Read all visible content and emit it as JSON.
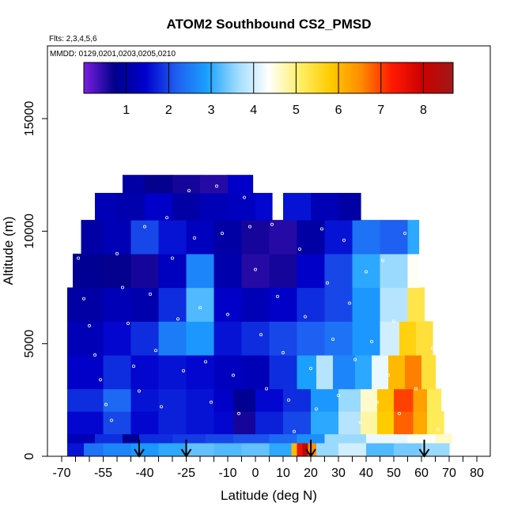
{
  "chart_data": {
    "type": "heatmap",
    "title": "ATOM2 Southbound CS2_PMSD",
    "subtitle_flights": "Flts: 2,3,4,5,6",
    "subtitle_dates": "MMDD: 0129,0201,0203,0205,0210",
    "xlabel": "Latitude (deg N)",
    "ylabel": "Altitude (m)",
    "xlim": [
      -70,
      80
    ],
    "ylim": [
      0,
      17500
    ],
    "x_ticks": [
      -70,
      -55,
      -40,
      -25,
      -10,
      0,
      10,
      20,
      30,
      40,
      50,
      60,
      70,
      80
    ],
    "x_minor_ticks": [
      -65,
      -60,
      -50,
      -45,
      -35,
      -30,
      -20,
      -15,
      -5,
      5,
      15,
      25,
      35,
      45,
      55,
      65,
      75
    ],
    "y_ticks": [
      0,
      5000,
      10000,
      15000
    ],
    "colorbar": {
      "min": 0,
      "max": 8.7,
      "ticks": [
        1,
        2,
        3,
        4,
        5,
        6,
        7,
        8
      ],
      "colors": [
        "#7b1fe0",
        "#00008b",
        "#0000cd",
        "#1e5ef0",
        "#1aa0ff",
        "#9fdcff",
        "#ffffff",
        "#fff06a",
        "#ffcc00",
        "#ff8c00",
        "#ff1a00",
        "#cc0000",
        "#a01818"
      ],
      "placement": "top inside plot"
    },
    "value_legend": "CS2_PMSD",
    "cells": [
      [
        -68,
        -62,
        0,
        600,
        1.6
      ],
      [
        -62,
        -55,
        0,
        600,
        2.4
      ],
      [
        -55,
        -45,
        0,
        600,
        2.6
      ],
      [
        -45,
        -35,
        0,
        600,
        2.8
      ],
      [
        -35,
        -25,
        0,
        600,
        3.0
      ],
      [
        -25,
        -15,
        0,
        600,
        3.3
      ],
      [
        -15,
        -5,
        0,
        600,
        3.2
      ],
      [
        -5,
        5,
        0,
        600,
        3.3
      ],
      [
        5,
        13,
        0,
        600,
        3.0
      ],
      [
        13,
        15,
        0,
        600,
        6.0
      ],
      [
        15,
        17,
        0,
        600,
        7.5
      ],
      [
        17,
        19,
        0,
        600,
        8.2
      ],
      [
        19,
        22,
        0,
        600,
        6.5
      ],
      [
        22,
        30,
        0,
        600,
        3.6
      ],
      [
        30,
        40,
        0,
        600,
        4.0
      ],
      [
        40,
        50,
        0,
        600,
        3.2
      ],
      [
        50,
        60,
        0,
        600,
        3.4
      ],
      [
        60,
        70,
        0,
        600,
        3.6
      ],
      [
        -68,
        -58,
        600,
        1000,
        1.2
      ],
      [
        -58,
        -48,
        600,
        1000,
        1.8
      ],
      [
        -48,
        -42,
        600,
        1000,
        0.8
      ],
      [
        -42,
        -30,
        600,
        1000,
        1.8
      ],
      [
        -30,
        -18,
        600,
        1000,
        1.9
      ],
      [
        -18,
        -8,
        600,
        1000,
        2.0
      ],
      [
        -8,
        5,
        600,
        1000,
        2.1
      ],
      [
        5,
        15,
        600,
        1000,
        2.3
      ],
      [
        15,
        25,
        600,
        1000,
        2.7
      ],
      [
        25,
        40,
        600,
        1000,
        3.6
      ],
      [
        40,
        55,
        600,
        1000,
        4.2
      ],
      [
        55,
        65,
        600,
        1000,
        4.4
      ],
      [
        65,
        71,
        600,
        1000,
        4.6
      ],
      [
        -68,
        -55,
        1000,
        2000,
        1.5
      ],
      [
        -55,
        -45,
        1000,
        2000,
        2.0
      ],
      [
        -45,
        -35,
        1000,
        2000,
        1.5
      ],
      [
        -35,
        -25,
        1000,
        2000,
        1.7
      ],
      [
        -25,
        -15,
        1000,
        2000,
        1.6
      ],
      [
        -15,
        -8,
        1000,
        2000,
        1.5
      ],
      [
        -8,
        0,
        1000,
        2000,
        0.6
      ],
      [
        0,
        10,
        1000,
        2000,
        1.7
      ],
      [
        10,
        20,
        1000,
        2000,
        2.0
      ],
      [
        20,
        30,
        1000,
        2000,
        3.0
      ],
      [
        30,
        38,
        1000,
        2000,
        3.8
      ],
      [
        38,
        44,
        1000,
        2000,
        4.8
      ],
      [
        44,
        50,
        1000,
        2000,
        5.8
      ],
      [
        50,
        57,
        1000,
        2000,
        6.8
      ],
      [
        57,
        62,
        1000,
        2000,
        6.2
      ],
      [
        62,
        68,
        1000,
        2000,
        5.2
      ],
      [
        -68,
        -55,
        2000,
        3000,
        1.8
      ],
      [
        -55,
        -45,
        2000,
        3000,
        2.3
      ],
      [
        -45,
        -35,
        2000,
        3000,
        1.6
      ],
      [
        -35,
        -25,
        2000,
        3000,
        1.7
      ],
      [
        -25,
        -15,
        2000,
        3000,
        1.6
      ],
      [
        -15,
        -8,
        2000,
        3000,
        1.4
      ],
      [
        -8,
        0,
        2000,
        3000,
        0.8
      ],
      [
        0,
        10,
        2000,
        3000,
        1.5
      ],
      [
        10,
        20,
        2000,
        3000,
        1.8
      ],
      [
        20,
        30,
        2000,
        3000,
        2.8
      ],
      [
        30,
        38,
        2000,
        3000,
        3.6
      ],
      [
        38,
        44,
        2000,
        3000,
        4.6
      ],
      [
        44,
        50,
        2000,
        3000,
        5.9
      ],
      [
        50,
        57,
        2000,
        3000,
        7.0
      ],
      [
        57,
        62,
        2000,
        3000,
        6.3
      ],
      [
        62,
        67,
        2000,
        3000,
        5.2
      ],
      [
        -68,
        -55,
        3000,
        4500,
        1.4
      ],
      [
        -55,
        -45,
        3000,
        4500,
        1.8
      ],
      [
        -45,
        -35,
        3000,
        4500,
        1.5
      ],
      [
        -35,
        -25,
        3000,
        4500,
        1.6
      ],
      [
        -25,
        -15,
        3000,
        4500,
        1.5
      ],
      [
        -15,
        -5,
        3000,
        4500,
        1.3
      ],
      [
        -5,
        5,
        3000,
        4500,
        1.2
      ],
      [
        5,
        15,
        3000,
        4500,
        1.8
      ],
      [
        15,
        22,
        3000,
        4500,
        2.9
      ],
      [
        22,
        28,
        3000,
        4500,
        3.8
      ],
      [
        28,
        36,
        3000,
        4500,
        2.6
      ],
      [
        36,
        42,
        3000,
        4500,
        3.0
      ],
      [
        42,
        48,
        3000,
        4500,
        4.2
      ],
      [
        48,
        54,
        3000,
        4500,
        6.0
      ],
      [
        54,
        60,
        3000,
        4500,
        6.6
      ],
      [
        60,
        65,
        3000,
        4500,
        5.4
      ],
      [
        -68,
        -55,
        4500,
        6000,
        1.2
      ],
      [
        -55,
        -45,
        4500,
        6000,
        1.5
      ],
      [
        -45,
        -35,
        4500,
        6000,
        1.8
      ],
      [
        -35,
        -25,
        4500,
        6000,
        2.5
      ],
      [
        -25,
        -15,
        4500,
        6000,
        2.8
      ],
      [
        -15,
        -5,
        4500,
        6000,
        1.6
      ],
      [
        -5,
        5,
        4500,
        6000,
        1.8
      ],
      [
        5,
        15,
        4500,
        6000,
        2.0
      ],
      [
        15,
        25,
        4500,
        6000,
        2.2
      ],
      [
        25,
        35,
        4500,
        6000,
        2.4
      ],
      [
        35,
        45,
        4500,
        6000,
        2.8
      ],
      [
        45,
        52,
        4500,
        6000,
        4.0
      ],
      [
        52,
        58,
        4500,
        6000,
        5.7
      ],
      [
        58,
        64,
        4500,
        6000,
        5.4
      ],
      [
        -68,
        -55,
        6000,
        7500,
        1.0
      ],
      [
        -55,
        -45,
        6000,
        7500,
        1.2
      ],
      [
        -45,
        -35,
        6000,
        7500,
        1.1
      ],
      [
        -35,
        -25,
        6000,
        7500,
        1.8
      ],
      [
        -25,
        -15,
        6000,
        7500,
        3.2
      ],
      [
        -15,
        -5,
        6000,
        7500,
        1.4
      ],
      [
        -5,
        5,
        6000,
        7500,
        1.2
      ],
      [
        5,
        15,
        6000,
        7500,
        1.4
      ],
      [
        15,
        25,
        6000,
        7500,
        1.8
      ],
      [
        25,
        35,
        6000,
        7500,
        2.0
      ],
      [
        35,
        45,
        6000,
        7500,
        2.8
      ],
      [
        45,
        55,
        6000,
        7500,
        3.8
      ],
      [
        55,
        61,
        6000,
        7500,
        5.3
      ],
      [
        -66,
        -55,
        7500,
        9000,
        0.8
      ],
      [
        -55,
        -45,
        7500,
        9000,
        0.7
      ],
      [
        -45,
        -35,
        7500,
        9000,
        0.6
      ],
      [
        -35,
        -25,
        7500,
        9000,
        1.3
      ],
      [
        -25,
        -15,
        7500,
        9000,
        2.6
      ],
      [
        -15,
        -5,
        7500,
        9000,
        1.1
      ],
      [
        -5,
        5,
        7500,
        9000,
        0.5
      ],
      [
        5,
        15,
        7500,
        9000,
        0.6
      ],
      [
        15,
        25,
        7500,
        9000,
        1.4
      ],
      [
        25,
        35,
        7500,
        9000,
        2.0
      ],
      [
        35,
        45,
        7500,
        9000,
        3.0
      ],
      [
        45,
        55,
        7500,
        9000,
        3.6
      ],
      [
        55,
        59,
        7500,
        9000,
        4.4
      ],
      [
        -63,
        -55,
        9000,
        10500,
        1.0
      ],
      [
        -55,
        -45,
        9000,
        10500,
        1.2
      ],
      [
        -45,
        -35,
        9000,
        10500,
        2.0
      ],
      [
        -35,
        -25,
        9000,
        10500,
        1.6
      ],
      [
        -25,
        -15,
        9000,
        10500,
        1.3
      ],
      [
        -15,
        -5,
        9000,
        10500,
        1.0
      ],
      [
        -5,
        5,
        9000,
        10500,
        0.6
      ],
      [
        5,
        15,
        9000,
        10500,
        0.5
      ],
      [
        15,
        25,
        9000,
        10500,
        1.0
      ],
      [
        25,
        35,
        9000,
        10500,
        1.6
      ],
      [
        35,
        45,
        9000,
        10500,
        2.4
      ],
      [
        45,
        55,
        9000,
        10500,
        2.2
      ],
      [
        55,
        59,
        9000,
        10500,
        3.0
      ],
      [
        -58,
        -50,
        10500,
        11700,
        1.2
      ],
      [
        -50,
        -40,
        10500,
        11700,
        1.1
      ],
      [
        -40,
        -30,
        10500,
        11700,
        1.4
      ],
      [
        -30,
        -20,
        10500,
        11700,
        1.0
      ],
      [
        -20,
        -10,
        10500,
        11700,
        1.2
      ],
      [
        -10,
        0,
        10500,
        11700,
        1.3
      ],
      [
        0,
        6,
        10500,
        11700,
        1.5
      ],
      [
        10,
        20,
        10500,
        11700,
        1.6
      ],
      [
        20,
        30,
        10500,
        11700,
        1.2
      ],
      [
        30,
        38,
        10500,
        11700,
        1.0
      ],
      [
        -48,
        -40,
        11700,
        12500,
        1.0
      ],
      [
        -40,
        -30,
        11700,
        12500,
        0.7
      ],
      [
        -30,
        -20,
        11700,
        12500,
        0.6
      ],
      [
        -20,
        -10,
        11700,
        12500,
        0.5
      ],
      [
        -10,
        -1,
        11700,
        12500,
        1.4
      ]
    ],
    "sample_points": [
      [
        -67,
        9500
      ],
      [
        -64,
        8800
      ],
      [
        -62,
        7000
      ],
      [
        -60,
        5800
      ],
      [
        -58,
        4500
      ],
      [
        -56,
        3400
      ],
      [
        -54,
        2300
      ],
      [
        -52,
        1600
      ],
      [
        -50,
        9000
      ],
      [
        -48,
        7500
      ],
      [
        -46,
        5900
      ],
      [
        -44,
        4000
      ],
      [
        -42,
        2900
      ],
      [
        -40,
        10200
      ],
      [
        -38,
        7200
      ],
      [
        -36,
        4700
      ],
      [
        -34,
        2200
      ],
      [
        -32,
        10600
      ],
      [
        -30,
        8800
      ],
      [
        -28,
        6100
      ],
      [
        -26,
        3800
      ],
      [
        -24,
        11800
      ],
      [
        -22,
        9700
      ],
      [
        -20,
        6600
      ],
      [
        -18,
        4200
      ],
      [
        -16,
        2400
      ],
      [
        -14,
        12000
      ],
      [
        -12,
        9900
      ],
      [
        -10,
        6300
      ],
      [
        -8,
        3600
      ],
      [
        -6,
        1900
      ],
      [
        -4,
        11500
      ],
      [
        -2,
        10200
      ],
      [
        0,
        8300
      ],
      [
        2,
        5400
      ],
      [
        4,
        3000
      ],
      [
        6,
        10300
      ],
      [
        8,
        7100
      ],
      [
        10,
        4600
      ],
      [
        12,
        2500
      ],
      [
        14,
        1100
      ],
      [
        16,
        9200
      ],
      [
        18,
        6200
      ],
      [
        20,
        3900
      ],
      [
        22,
        2100
      ],
      [
        24,
        10100
      ],
      [
        26,
        7700
      ],
      [
        28,
        5200
      ],
      [
        30,
        2700
      ],
      [
        32,
        9600
      ],
      [
        34,
        6800
      ],
      [
        36,
        4300
      ],
      [
        38,
        1500
      ],
      [
        40,
        8200
      ],
      [
        42,
        5100
      ],
      [
        44,
        2400
      ],
      [
        46,
        8700
      ],
      [
        48,
        3600
      ],
      [
        50,
        6000
      ],
      [
        52,
        1900
      ],
      [
        54,
        9900
      ],
      [
        56,
        7800
      ],
      [
        58,
        3000
      ],
      [
        60,
        9600
      ],
      [
        62,
        8000
      ],
      [
        64,
        4800
      ],
      [
        66,
        1200
      ],
      [
        68,
        9800
      ]
    ],
    "flight_arrows_lat": [
      -42,
      -25,
      20,
      61
    ]
  }
}
